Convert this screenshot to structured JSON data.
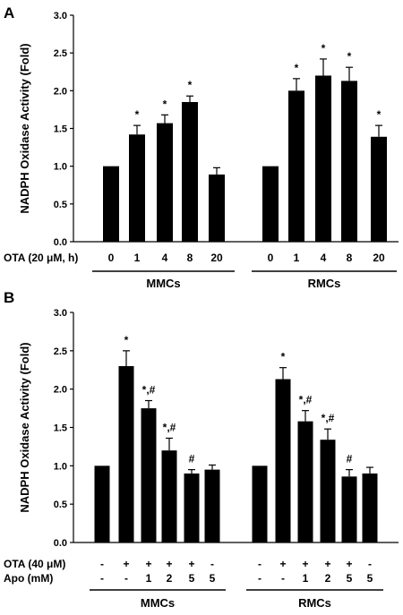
{
  "chart_data": [
    {
      "type": "bar",
      "panel": "A",
      "ylabel": "NADPH Oxidase Activity (Fold)",
      "ylim": [
        0,
        3.0
      ],
      "yticks": [
        "0.0",
        "0.5",
        "1.0",
        "1.5",
        "2.0",
        "2.5",
        "3.0"
      ],
      "row_labels": [
        "OTA (20 μM, h)"
      ],
      "groups": [
        {
          "name": "MMCs",
          "bars": [
            {
              "x": [
                "0"
              ],
              "value": 1.0,
              "error": 0,
              "sig": ""
            },
            {
              "x": [
                "1"
              ],
              "value": 1.42,
              "error": 0.12,
              "sig": "*"
            },
            {
              "x": [
                "4"
              ],
              "value": 1.57,
              "error": 0.11,
              "sig": "*"
            },
            {
              "x": [
                "8"
              ],
              "value": 1.85,
              "error": 0.08,
              "sig": "*"
            },
            {
              "x": [
                "20"
              ],
              "value": 0.89,
              "error": 0.09,
              "sig": ""
            }
          ]
        },
        {
          "name": "RMCs",
          "bars": [
            {
              "x": [
                "0"
              ],
              "value": 1.0,
              "error": 0,
              "sig": ""
            },
            {
              "x": [
                "1"
              ],
              "value": 2.0,
              "error": 0.16,
              "sig": "*"
            },
            {
              "x": [
                "4"
              ],
              "value": 2.2,
              "error": 0.22,
              "sig": "*"
            },
            {
              "x": [
                "8"
              ],
              "value": 2.13,
              "error": 0.18,
              "sig": "*"
            },
            {
              "x": [
                "20"
              ],
              "value": 1.39,
              "error": 0.15,
              "sig": "*"
            }
          ]
        }
      ]
    },
    {
      "type": "bar",
      "panel": "B",
      "ylabel": "NADPH Oxidase Activity (Fold)",
      "ylim": [
        0,
        3.0
      ],
      "yticks": [
        "0.0",
        "0.5",
        "1.0",
        "1.5",
        "2.0",
        "2.5",
        "3.0"
      ],
      "row_labels": [
        "OTA (40 μM)",
        "Apo (mM)"
      ],
      "groups": [
        {
          "name": "MMCs",
          "bars": [
            {
              "x": [
                "-",
                "-"
              ],
              "value": 1.0,
              "error": 0,
              "sig": ""
            },
            {
              "x": [
                "+",
                "-"
              ],
              "value": 2.3,
              "error": 0.2,
              "sig": "*"
            },
            {
              "x": [
                "+",
                "1"
              ],
              "value": 1.75,
              "error": 0.1,
              "sig": "*,#"
            },
            {
              "x": [
                "+",
                "2"
              ],
              "value": 1.2,
              "error": 0.16,
              "sig": "*,#"
            },
            {
              "x": [
                "+",
                "5"
              ],
              "value": 0.9,
              "error": 0.05,
              "sig": "#"
            },
            {
              "x": [
                "-",
                "5"
              ],
              "value": 0.95,
              "error": 0.06,
              "sig": ""
            }
          ]
        },
        {
          "name": "RMCs",
          "bars": [
            {
              "x": [
                "-",
                "-"
              ],
              "value": 1.0,
              "error": 0,
              "sig": ""
            },
            {
              "x": [
                "+",
                "-"
              ],
              "value": 2.13,
              "error": 0.15,
              "sig": "*"
            },
            {
              "x": [
                "+",
                "1"
              ],
              "value": 1.58,
              "error": 0.14,
              "sig": "*,#"
            },
            {
              "x": [
                "+",
                "2"
              ],
              "value": 1.34,
              "error": 0.14,
              "sig": "*,#"
            },
            {
              "x": [
                "+",
                "5"
              ],
              "value": 0.86,
              "error": 0.09,
              "sig": "#"
            },
            {
              "x": [
                "-",
                "5"
              ],
              "value": 0.9,
              "error": 0.08,
              "sig": ""
            }
          ]
        }
      ]
    }
  ]
}
